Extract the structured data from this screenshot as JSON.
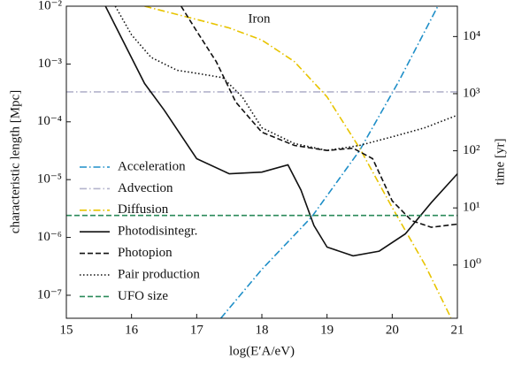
{
  "chart_data": {
    "type": "line",
    "title": "Iron",
    "x_label": "log(E′A/eV)",
    "y_label": "characteristic length [Mpc]",
    "y2_label": "time [yr]",
    "xlim": [
      15,
      21
    ],
    "xticks": [
      15,
      16,
      17,
      18,
      19,
      20,
      21
    ],
    "ylim": [
      4e-08,
      0.01
    ],
    "y_log": true,
    "yticks": [
      {
        "value": 1e-07,
        "label": "10⁻⁷"
      },
      {
        "value": 1e-06,
        "label": "10⁻⁶"
      },
      {
        "value": 1e-05,
        "label": "10⁻⁵"
      },
      {
        "value": 0.0001,
        "label": "10⁻⁴"
      },
      {
        "value": 0.001,
        "label": "10⁻³"
      },
      {
        "value": 0.01,
        "label": "10⁻²"
      }
    ],
    "y2lim": [
      0.117,
      34000
    ],
    "y2_log": true,
    "y2ticks": [
      {
        "value": 1,
        "label": "10⁰"
      },
      {
        "value": 10,
        "label": "10¹"
      },
      {
        "value": 100,
        "label": "10²"
      },
      {
        "value": 1000,
        "label": "10³"
      },
      {
        "value": 10000,
        "label": "10⁴"
      }
    ],
    "legend": "left",
    "series": [
      {
        "name": "Acceleration",
        "color": "#1f8fc8",
        "style": "dashdot",
        "x": [
          17.37,
          18,
          18.77,
          19.5,
          20.1,
          20.7
        ],
        "values": [
          4e-08,
          2.8e-07,
          2.3e-06,
          3.2e-05,
          0.0005,
          0.01
        ]
      },
      {
        "name": "Advection",
        "color": "#b4b4cc",
        "style": "dashdot",
        "x": [
          15,
          21
        ],
        "values": [
          0.00033,
          0.00033
        ]
      },
      {
        "name": "Diffusion",
        "color": "#e8c400",
        "style": "dashdot",
        "x": [
          16.2,
          17,
          17.5,
          18,
          18.5,
          19,
          19.5,
          20,
          20.5,
          20.9
        ],
        "values": [
          0.01,
          0.0059,
          0.0042,
          0.0026,
          0.0011,
          0.00027,
          3.5e-05,
          3.3e-06,
          3.4e-07,
          4.1e-08
        ]
      },
      {
        "name": "Photodisintegr.",
        "color": "#111111",
        "style": "solid",
        "x": [
          15.6,
          16.2,
          16.5,
          17,
          17.5,
          18,
          18.4,
          18.6,
          18.8,
          19,
          19.4,
          19.8,
          20.2,
          20.6,
          21
        ],
        "values": [
          0.01,
          0.00046,
          0.00016,
          2.3e-05,
          1.26e-05,
          1.35e-05,
          1.8e-05,
          6.6e-06,
          1.6e-06,
          6.8e-07,
          4.8e-07,
          5.8e-07,
          1.15e-06,
          4e-06,
          1.26e-05
        ]
      },
      {
        "name": "Photopion",
        "color": "#111111",
        "style": "dashed",
        "x": [
          16.76,
          17,
          17.3,
          17.6,
          18,
          18.5,
          19,
          19.4,
          19.7,
          20,
          20.3,
          20.6,
          21
        ],
        "values": [
          0.01,
          0.0037,
          0.0011,
          0.00022,
          6.6e-05,
          3.9e-05,
          3.2e-05,
          3.5e-05,
          2.3e-05,
          4.3e-06,
          1.95e-06,
          1.5e-06,
          1.7e-06
        ]
      },
      {
        "name": "Pair production",
        "color": "#111111",
        "style": "dotted",
        "x": [
          15.75,
          16,
          16.3,
          16.7,
          17,
          17.4,
          17.7,
          18,
          18.5,
          19,
          19.5,
          20,
          20.5,
          21
        ],
        "values": [
          0.01,
          0.0032,
          0.0013,
          0.00078,
          0.00069,
          0.00058,
          0.00027,
          7.9e-05,
          4.2e-05,
          3.2e-05,
          3.9e-05,
          5.5e-05,
          7.9e-05,
          0.00013
        ]
      },
      {
        "name": "UFO size",
        "color": "#2a8a5a",
        "style": "dashed",
        "x": [
          15,
          21
        ],
        "values": [
          2.4e-06,
          2.4e-06
        ]
      }
    ]
  }
}
